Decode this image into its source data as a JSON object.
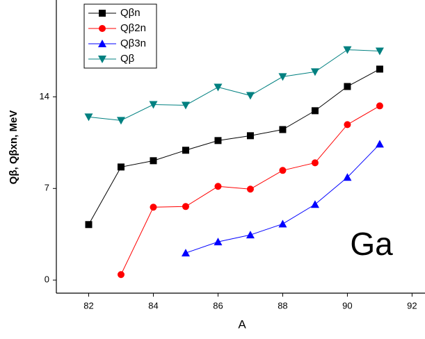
{
  "chart_data": {
    "type": "line",
    "x_label": "A",
    "y_label": "Qβ, Qβxn, MeV",
    "annotation": "Ga",
    "x": [
      82,
      83,
      84,
      85,
      86,
      87,
      88,
      89,
      90,
      91
    ],
    "series": [
      {
        "name": "Qβn",
        "color": "#000000",
        "marker": "square",
        "values": [
          4.24,
          8.64,
          9.12,
          9.92,
          10.66,
          11.03,
          11.5,
          12.94,
          14.79,
          16.12
        ]
      },
      {
        "name": "Qβ2n",
        "color": "#ff0000",
        "marker": "circle",
        "values": [
          null,
          0.42,
          5.57,
          5.62,
          7.16,
          6.95,
          8.38,
          8.96,
          11.88,
          13.31
        ]
      },
      {
        "name": "Qβ3n",
        "color": "#0000ff",
        "marker": "triangle-up",
        "values": [
          null,
          null,
          null,
          2.07,
          2.92,
          3.45,
          4.29,
          5.78,
          7.85,
          10.39
        ]
      },
      {
        "name": "Qβ",
        "color": "#008080",
        "marker": "triangle-down",
        "values": [
          12.46,
          12.2,
          13.41,
          13.36,
          14.74,
          14.1,
          15.54,
          15.91,
          17.6,
          17.5
        ]
      }
    ],
    "xlim": [
      81,
      92.4
    ],
    "xticks": [
      82,
      84,
      86,
      88,
      90,
      92
    ],
    "ylim": [
      -1,
      21.4
    ],
    "yticks": [
      0,
      7,
      14
    ],
    "legend": "upper left",
    "grid": false
  }
}
